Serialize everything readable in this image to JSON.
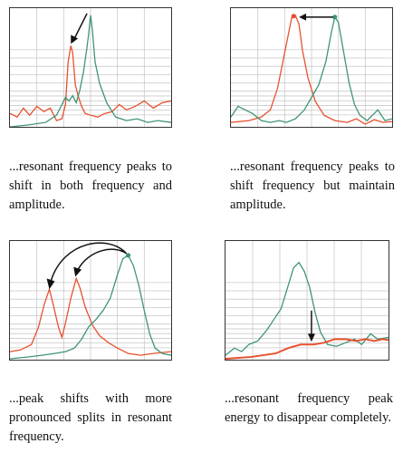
{
  "colors": {
    "red": "#e8502f",
    "green": "#3f9474",
    "grid": "#c9c9c9",
    "arrow": "#111111"
  },
  "panels": [
    {
      "caption": "...resonant frequency peaks to shift in both frequency and amplitude."
    },
    {
      "caption": "...resonant frequency peaks to shift frequency but maintain amplitude."
    },
    {
      "caption": "...peak shifts with more pronounced splits in resonant frequency."
    },
    {
      "caption": "...resonant frequency peak energy to disappear completely."
    }
  ]
}
